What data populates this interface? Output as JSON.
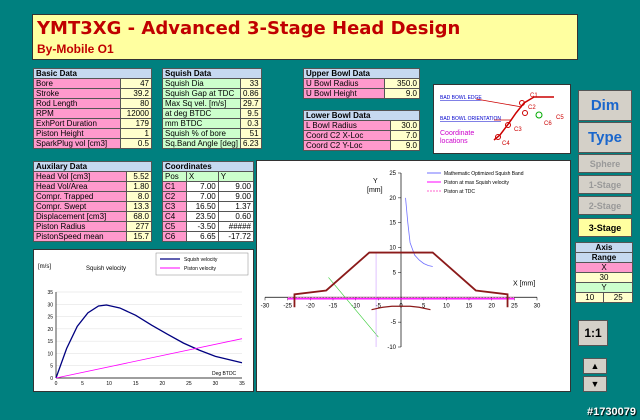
{
  "title": {
    "main": "YMT3XG - Advanced 3-Stage Head Design",
    "sub": "By-Mobile O1"
  },
  "basic": {
    "header": "Basic Data",
    "rows": [
      {
        "label": "Bore",
        "value": "47"
      },
      {
        "label": "Stroke",
        "value": "39.2"
      },
      {
        "label": "Rod Length",
        "value": "80"
      },
      {
        "label": "RPM",
        "value": "12000"
      },
      {
        "label": "ExhPort Duration",
        "value": "179"
      },
      {
        "label": "Piston Height",
        "value": "1"
      },
      {
        "label": "SparkPlug vol [cm3]",
        "value": "0.5"
      }
    ]
  },
  "squish": {
    "header": "Squish Data",
    "rows": [
      {
        "label": "Squish Dia",
        "value": "33"
      },
      {
        "label": "Squish Gap at TDC",
        "value": "0.86"
      },
      {
        "label": "Max Sq vel. [m/s]",
        "value": "29.7"
      },
      {
        "label": "at deg BTDC",
        "value": "9.5"
      },
      {
        "label": "mm BTDC",
        "value": "0.3"
      },
      {
        "label": "Squish % of bore",
        "value": "51"
      },
      {
        "label": "Sq.Band Angle [deg]",
        "value": "6.23"
      }
    ]
  },
  "upper": {
    "header": "Upper Bowl Data",
    "rows": [
      {
        "label": "U Bowl Radius",
        "value": "350.0"
      },
      {
        "label": "U Bowl Height",
        "value": "9.0"
      }
    ]
  },
  "lower": {
    "header": "Lower Bowl Data",
    "rows": [
      {
        "label": "L Bowl Radius",
        "value": "30.0"
      },
      {
        "label": "Coord C2 X-Loc",
        "value": "7.0"
      },
      {
        "label": "Coord C2 Y-Loc",
        "value": "9.0"
      }
    ]
  },
  "aux": {
    "header": "Auxilary Data",
    "rows": [
      {
        "label": "Head Vol [cm3]",
        "value": "5.52"
      },
      {
        "label": "Head Vol/Area",
        "value": "1.80"
      },
      {
        "label": "Compr. Trapped",
        "value": "8.0"
      },
      {
        "label": "Compr. Swept",
        "value": "13.3"
      },
      {
        "label": "Displacement [cm3]",
        "value": "68.0"
      },
      {
        "label": "Piston Radius",
        "value": "277"
      },
      {
        "label": "PistonSpeed mean",
        "value": "15.7"
      }
    ]
  },
  "coords": {
    "header": "Coordinates",
    "cols": [
      "Pos",
      "X",
      "Y"
    ],
    "rows": [
      [
        "C1",
        "7.00",
        "9.00"
      ],
      [
        "C2",
        "7.00",
        "9.00"
      ],
      [
        "C3",
        "16.50",
        "1.37"
      ],
      [
        "C4",
        "23.50",
        "0.60"
      ],
      [
        "C5",
        "-3.50",
        "#####"
      ],
      [
        "C6",
        "6.65",
        "-17.72"
      ]
    ]
  },
  "diagram": {
    "bad_bowl_edge": "BAD BOWL EDGE",
    "bad_bowl_orientation": "BAD BOWL ORIENTATION",
    "coordinate": "Coordinate",
    "locations": "locations",
    "labels": [
      "C1",
      "C2",
      "C3",
      "C4",
      "C5",
      "C6"
    ]
  },
  "buttons": {
    "dim": "Dim",
    "type": "Type",
    "sphere": "Sphere",
    "stage1": "1-Stage",
    "stage2": "2-Stage",
    "stage3": "3-Stage",
    "ratio": "1:1",
    "up": "▲",
    "down": "▼"
  },
  "axis_range": {
    "title1": "Axis",
    "title2": "Range",
    "x_label": "X",
    "x_value": "30",
    "y_label": "Y",
    "y_min": "10",
    "y_max": "25"
  },
  "velocity_chart": {
    "title": "Squish velocity",
    "ylabel": "[m/s]",
    "xlabel": "Deg BTDC",
    "legend": [
      "Squish velocity",
      "Piston velocity"
    ],
    "colors": {
      "squish": "#000080",
      "piston": "#ff00ff"
    },
    "x_ticks": [
      "0",
      "5",
      "10",
      "15",
      "20",
      "25",
      "30",
      "35"
    ],
    "y_ticks": [
      "0",
      "5",
      "10",
      "15",
      "20",
      "25",
      "30",
      "35"
    ]
  },
  "chart_data": [
    {
      "type": "line",
      "title": "Squish velocity",
      "xlabel": "Deg BTDC",
      "ylabel": "[m/s]",
      "xlim": [
        0,
        35
      ],
      "ylim": [
        0,
        35
      ],
      "series": [
        {
          "name": "Squish velocity",
          "x": [
            0,
            2,
            4,
            6,
            8,
            9.5,
            12,
            15,
            18,
            21,
            24,
            27,
            30,
            35
          ],
          "y": [
            0,
            12,
            21,
            26.5,
            29.3,
            29.7,
            28.5,
            25.5,
            21.5,
            17.8,
            14.2,
            11.3,
            8.8,
            6.2
          ]
        },
        {
          "name": "Piston velocity",
          "x": [
            0,
            35
          ],
          "y": [
            0,
            16
          ]
        }
      ]
    },
    {
      "type": "line",
      "title": "",
      "xlabel": "X [mm]",
      "ylabel": "Y [mm]",
      "xlim": [
        -30,
        30
      ],
      "ylim": [
        -10,
        25
      ],
      "legend": [
        "Mathematic Optimized Squish Band",
        "Piston at max Squish velocity",
        "Piston at TDC"
      ],
      "series": [
        {
          "name": "Mathematic Optimized Squish Band",
          "x": [
            1,
            1.5,
            2,
            3,
            4,
            5,
            6,
            7
          ],
          "y": [
            20,
            15,
            11,
            8.5,
            7.5,
            6.8,
            6.4,
            6.2
          ]
        },
        {
          "name": "Piston at max Squish velocity",
          "x": [
            -25,
            25
          ],
          "y": [
            -0.3,
            -0.3
          ]
        },
        {
          "name": "Piston at TDC",
          "x": [
            -25,
            25
          ],
          "y": [
            0,
            0
          ]
        },
        {
          "name": "",
          "x": [
            -23.5,
            -23.5,
            -16.5,
            -7,
            -7,
            7,
            7,
            16.5,
            23.5,
            23.5
          ],
          "y": [
            -2,
            0.6,
            1.37,
            9,
            9,
            9,
            9,
            1.37,
            0.6,
            -2
          ]
        },
        {
          "name": "",
          "x": [
            -6.5,
            -4,
            -2,
            0,
            2,
            4,
            6.5
          ],
          "y": [
            -2.5,
            -2,
            -1.8,
            -1.8,
            -1.8,
            -2,
            -2.5
          ]
        }
      ]
    }
  ]
}
